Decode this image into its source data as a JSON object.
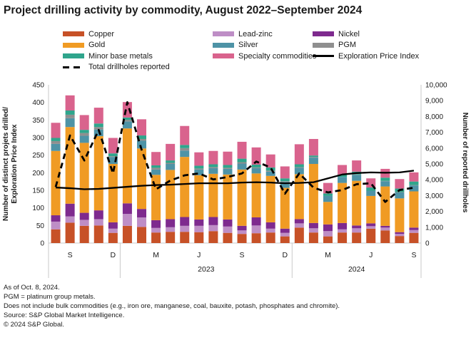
{
  "title": "Project drilling activity by commodity, August 2022–September 2024",
  "legend": {
    "columns": [
      [
        {
          "label": "Copper",
          "swatch": "box",
          "color": "#C75127"
        },
        {
          "label": "Gold",
          "swatch": "box",
          "color": "#F09B24"
        },
        {
          "label": "Minor base metals",
          "swatch": "box",
          "color": "#2FA58C"
        },
        {
          "label": "Total drillholes reported",
          "swatch": "dashed"
        }
      ],
      [
        {
          "label": "Lead-zinc",
          "swatch": "box",
          "color": "#BE8EC6"
        },
        {
          "label": "Silver",
          "swatch": "box",
          "color": "#4E93A6"
        },
        {
          "label": "Specialty commodities",
          "swatch": "box",
          "color": "#D9638D"
        }
      ],
      [
        {
          "label": "Nickel",
          "swatch": "box",
          "color": "#7E2A8E"
        },
        {
          "label": "PGM",
          "swatch": "box",
          "color": "#8F8F8F"
        },
        {
          "label": "Exploration Price Index",
          "swatch": "solid"
        }
      ]
    ]
  },
  "chart_data": {
    "type": "bar",
    "subtype": "stacked-bar-with-lines",
    "title": "Project drilling activity by commodity, August 2022–September 2024",
    "months": [
      "Aug 2022",
      "Sep 2022",
      "Oct 2022",
      "Nov 2022",
      "Dec 2022",
      "Jan 2023",
      "Feb 2023",
      "Mar 2023",
      "Apr 2023",
      "May 2023",
      "Jun 2023",
      "Jul 2023",
      "Aug 2023",
      "Sep 2023",
      "Oct 2023",
      "Nov 2023",
      "Dec 2023",
      "Jan 2024",
      "Feb 2024",
      "Mar 2024",
      "Apr 2024",
      "May 2024",
      "Jun 2024",
      "Jul 2024",
      "Aug 2024",
      "Sep 2024"
    ],
    "x_ticks": [
      {
        "index": 1,
        "label": "S"
      },
      {
        "index": 4,
        "label": "D"
      },
      {
        "index": 7,
        "label": "M"
      },
      {
        "index": 10,
        "label": "J"
      },
      {
        "index": 13,
        "label": "S"
      },
      {
        "index": 16,
        "label": "D"
      },
      {
        "index": 19,
        "label": "M"
      },
      {
        "index": 22,
        "label": "J"
      },
      {
        "index": 25,
        "label": "S"
      }
    ],
    "year_groups": [
      {
        "label": "2023",
        "start": 5,
        "end": 17
      },
      {
        "label": "2024",
        "start": 17,
        "end": 26
      }
    ],
    "series": [
      {
        "name": "Copper",
        "color": "#C75127",
        "values": [
          39,
          58,
          49,
          50,
          29,
          49,
          46,
          30,
          32,
          32,
          31,
          34,
          29,
          26,
          28,
          30,
          19,
          44,
          30,
          19,
          30,
          30,
          41,
          36,
          20,
          29
        ]
      },
      {
        "name": "Lead-zinc",
        "color": "#BE8EC6",
        "values": [
          22,
          18,
          17,
          18,
          12,
          34,
          27,
          13,
          13,
          17,
          18,
          17,
          18,
          10,
          22,
          11,
          10,
          12,
          12,
          15,
          9,
          12,
          7,
          8,
          6,
          8
        ]
      },
      {
        "name": "Nickel",
        "color": "#7E2A8E",
        "values": [
          18,
          36,
          20,
          25,
          18,
          30,
          24,
          22,
          23,
          25,
          18,
          23,
          20,
          13,
          23,
          18,
          12,
          12,
          15,
          19,
          18,
          8,
          8,
          5,
          5,
          7
        ]
      },
      {
        "name": "Gold",
        "color": "#F09B24",
        "values": [
          183,
          218,
          199,
          211,
          166,
          213,
          172,
          129,
          140,
          171,
          126,
          123,
          128,
          160,
          125,
          132,
          116,
          128,
          168,
          64,
          114,
          127,
          78,
          112,
          96,
          103
        ]
      },
      {
        "name": "Silver",
        "color": "#4E93A6",
        "values": [
          20,
          25,
          20,
          19,
          20,
          20,
          22,
          15,
          17,
          18,
          16,
          16,
          16,
          17,
          15,
          12,
          17,
          18,
          18,
          17,
          17,
          17,
          15,
          15,
          17,
          17
        ]
      },
      {
        "name": "PGM",
        "color": "#8F8F8F",
        "values": [
          8,
          10,
          8,
          7,
          2,
          4,
          5,
          5,
          3,
          7,
          3,
          3,
          3,
          4,
          2,
          3,
          2,
          2,
          2,
          0,
          0,
          1,
          0,
          1,
          1,
          1
        ]
      },
      {
        "name": "Minor base metals",
        "color": "#2FA58C",
        "values": [
          9,
          12,
          9,
          10,
          8,
          7,
          10,
          7,
          7,
          9,
          8,
          8,
          8,
          10,
          8,
          9,
          8,
          8,
          4,
          7,
          7,
          8,
          9,
          9,
          10,
          10
        ]
      },
      {
        "name": "Specialty commodities",
        "color": "#D9638D",
        "values": [
          43,
          43,
          42,
          45,
          44,
          44,
          46,
          38,
          47,
          54,
          38,
          38,
          38,
          48,
          49,
          37,
          34,
          57,
          47,
          30,
          27,
          32,
          26,
          25,
          27,
          26
        ]
      }
    ],
    "bar_totals": [
      342,
      420,
      364,
      385,
      299,
      401,
      352,
      259,
      282,
      333,
      258,
      262,
      260,
      288,
      272,
      252,
      218,
      281,
      296,
      171,
      222,
      235,
      184,
      211,
      182,
      201
    ],
    "lines": [
      {
        "name": "Exploration Price Index",
        "axis": "left",
        "style": "solid",
        "color": "#000000",
        "values": [
          158,
          156,
          153,
          154,
          157,
          160,
          163,
          165,
          166,
          168,
          170,
          170,
          170,
          172,
          173,
          172,
          170,
          171,
          173,
          184,
          195,
          199,
          201,
          200,
          201,
          206
        ]
      },
      {
        "name": "Total drillholes reported",
        "axis": "right",
        "style": "dashed",
        "color": "#000000",
        "values": [
          3550,
          6800,
          5220,
          7150,
          4400,
          8900,
          5890,
          3400,
          3950,
          4280,
          4400,
          4020,
          4175,
          4400,
          5150,
          4775,
          3120,
          4400,
          3500,
          3200,
          3350,
          3720,
          3780,
          2600,
          3350,
          3500
        ]
      }
    ],
    "left_axis": {
      "label_line1": "Number of distinct projets drilled/",
      "label_line2": "Exploration Price Index",
      "min": 0,
      "max": 450,
      "step": 50
    },
    "right_axis": {
      "label": "Number of reported drillholes",
      "min": 0,
      "max": 10000,
      "step": 1000
    },
    "grid": false,
    "legend_position": "top"
  },
  "footer": {
    "lines": [
      "As of Oct. 8, 2024.",
      "PGM = platinum group metals.",
      "Does not include bulk commodities (e.g., iron ore, manganese, coal, bauxite, potash, phosphates and chromite).",
      "Source: S&P Global Market Intelligence.",
      "© 2024 S&P Global."
    ]
  }
}
